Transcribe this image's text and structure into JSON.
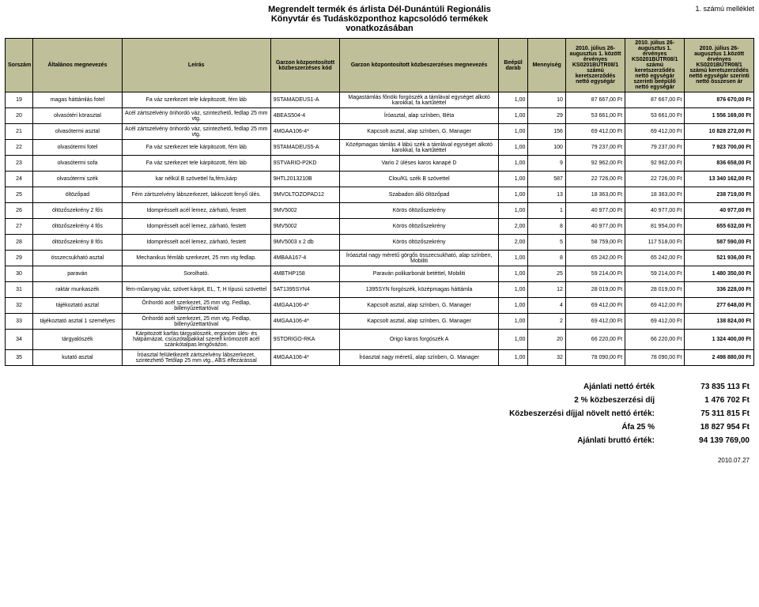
{
  "header": {
    "title_line1": "Megrendelt termék és árlista  Dél-Dunántúli Regionális",
    "title_line2": "Könyvtár és Tudásközponthoz kapcsolódó termékek",
    "title_line3": "vonatkozásában",
    "attachment": "1. számú melléklet"
  },
  "columns": [
    "Sorszám",
    "Általános megnevezés",
    "Leírás",
    "Garzon központosított közbeszerzéses kód",
    "Garzon központosított közbeszerzéses megnevezés",
    "Beépül darab",
    "Mennyiség",
    "2010. július 26-augusztus 1. között érvényes KS0201BUTR08/1 számú keretszerződés nettó egységár",
    "2010. július 26-augusztus 1. érvényes KS0201BUTR08/1 számú keretszerződés nettó egységár szerinti beépülő nettó egységár",
    "2010. július 26-augusztus 1.között érvényes KS0201BUTR08/1 számú keretszerződés nettó egységár szerinti nettó összesen ár"
  ],
  "rows": [
    {
      "sor": "19",
      "megn": "magas háttámlás fotel",
      "leiras": "Fa váz szerkezet tele kárpitozott, fém láb",
      "kod": "9STAMADEUS1-A",
      "kozb": "Magastámlás főnöki forgószék a támlával egységet alkotó karokkal, fa kartűtéttel",
      "db": "1,00",
      "menny": "10",
      "e1": "87 667,00 Ft",
      "e2": "87 667,00 Ft",
      "ossz": "876 670,00 Ft"
    },
    {
      "sor": "20",
      "megn": "olvasótéri körasztal",
      "leiras": "Acél zártszelvény önhordó váz, szintezhető, fedlap 25 mm vtg.",
      "kod": "4BEAS504-4",
      "kozb": "Íróasztal, alap színben, Béta",
      "db": "1,00",
      "menny": "29",
      "e1": "53 661,00 Ft",
      "e2": "53 661,00 Ft",
      "ossz": "1 556 169,00 Ft"
    },
    {
      "sor": "21",
      "megn": "olvasótermi asztal",
      "leiras": "Acél zártszelvény önhordó váz, szintezhető, fedlap 25 mm vtg.",
      "kod": "4MGAA106-4*",
      "kozb": "Kapcsolt asztal, alap színben, G. Manager",
      "db": "1,00",
      "menny": "156",
      "e1": "69 412,00 Ft",
      "e2": "69 412,00 Ft",
      "ossz": "10 828 272,00 Ft"
    },
    {
      "sor": "22",
      "megn": "olvasótermi fotel",
      "leiras": "Fa váz szerkezet tele kárpitozott, fém láb",
      "kod": "9STAMADEUS5-A",
      "kozb": "Középmagas támlás 4 lábú szék a támlával egységet alkotó karokkal, fa kartűtéttel",
      "db": "1,00",
      "menny": "100",
      "e1": "79 237,00 Ft",
      "e2": "79 237,00 Ft",
      "ossz": "7 923 700,00 Ft"
    },
    {
      "sor": "23",
      "megn": "olvasótermi sofa",
      "leiras": "Fa váz szerkezet tele kárpitozott, fém láb",
      "kod": "9STVARIO-P2KD",
      "kozb": "Vario 2 üléses karos kanapé D",
      "db": "1,00",
      "menny": "9",
      "e1": "92 962,00 Ft",
      "e2": "92 962,00 Ft",
      "ossz": "836 658,00 Ft"
    },
    {
      "sor": "24",
      "megn": "olvasótermi szék",
      "leiras": "kar nélkül  B szövettel  fa,fém,kárp",
      "kod": "9HTL2013210B",
      "kozb": "Clou/KL szék B szövettel",
      "db": "1,00",
      "menny": "587",
      "e1": "22 726,00 Ft",
      "e2": "22 726,00 Ft",
      "ossz": "13 340 162,00 Ft"
    },
    {
      "sor": "25",
      "megn": "öltözőpad",
      "leiras": "Fém zártszelvény lábszerkezet, lakkozott fenyő ülés.",
      "kod": "9MVOLTOZOPAD12",
      "kozb": "Szabadon álló öltözőpad",
      "db": "1,00",
      "menny": "13",
      "e1": "18 363,00 Ft",
      "e2": "18 363,00 Ft",
      "ossz": "238 719,00 Ft"
    },
    {
      "sor": "26",
      "megn": "öltözőszekrény 2 fős",
      "leiras": "Idomprésselt acél lemez, zárható, festett",
      "kod": "9MV5002",
      "kozb": "Körös öltözőszekrény",
      "db": "1,00",
      "menny": "1",
      "e1": "40 977,00 Ft",
      "e2": "40 977,00 Ft",
      "ossz": "40 977,00 Ft"
    },
    {
      "sor": "27",
      "megn": "öltözőszekrény 4 fős",
      "leiras": "Idomprésselt acél lemez, zárható, festett",
      "kod": "9MV5002",
      "kozb": "Körös öltözőszekrény",
      "db": "2,00",
      "menny": "8",
      "e1": "40 977,00 Ft",
      "e2": "81 954,00 Ft",
      "ossz": "655 632,00 Ft"
    },
    {
      "sor": "28",
      "megn": "öltözőszekrény 8 fős",
      "leiras": "Idomprésselt acél lemez, zárható, festett",
      "kod": "9MV5003 x 2 db",
      "kozb": "Körös öltözőszekrény",
      "db": "2,00",
      "menny": "5",
      "e1": "58 759,00 Ft",
      "e2": "117 518,00 Ft",
      "ossz": "587 590,00 Ft"
    },
    {
      "sor": "29",
      "megn": "összecsukható asztal",
      "leiras": "Mechanikus fémláb szerkezet, 25 mm vtg fedlap.",
      "kod": "4MBAA167-4",
      "kozb": "Íróasztal nagy méretű görgős összecsukható, alap színben, Mobiliti",
      "db": "1,00",
      "menny": "8",
      "e1": "65 242,00 Ft",
      "e2": "65 242,00 Ft",
      "ossz": "521 936,00 Ft"
    },
    {
      "sor": "30",
      "megn": "paraván",
      "leiras": "Sorolható.",
      "kod": "4MBTHP158",
      "kozb": "Paraván polikarbonát betéttel, Mobiliti",
      "db": "1,00",
      "menny": "25",
      "e1": "59 214,00 Ft",
      "e2": "59 214,00 Ft",
      "ossz": "1 480 350,00 Ft"
    },
    {
      "sor": "31",
      "megn": "raktár munkaszék",
      "leiras": "fém-műanyag váz, szövet kárpit, EL, T, H típusú szövettel",
      "kod": "9AT1395SYN4",
      "kozb": "1395SYN forgószék, középmagas háttámla",
      "db": "1,00",
      "menny": "12",
      "e1": "28 019,00 Ft",
      "e2": "28 019,00 Ft",
      "ossz": "336 228,00 Ft"
    },
    {
      "sor": "32",
      "megn": "tájékoztató asztal",
      "leiras": "Önhordó acél szerkezet, 25 mm vtg. Fedlap, billenyűzettartóval",
      "kod": "4MGAA106-4*",
      "kozb": "Kapcsolt asztal, alap színben, G. Manager",
      "db": "1,00",
      "menny": "4",
      "e1": "69 412,00 Ft",
      "e2": "69 412,00 Ft",
      "ossz": "277 648,00 Ft"
    },
    {
      "sor": "33",
      "megn": "tájékoztató asztal 1 személyes",
      "leiras": "Önhordó acél szerkezet, 25 mm vtg. Fedlap, billenyűzettartóval",
      "kod": "4MGAA106-4*",
      "kozb": "Kapcsolt asztal, alap színben, G. Manager",
      "db": "1,00",
      "menny": "2",
      "e1": "69 412,00 Ft",
      "e2": "69 412,00 Ft",
      "ossz": "138 824,00 Ft"
    },
    {
      "sor": "34",
      "megn": "tárgyalószék",
      "leiras": "Kárpitozott karfás tárgyalószék, ergonóm ülés- és hátpárnázat, csúszótalpakkal szerelt krómozott acél szánkótalpas lengőváźon.",
      "kod": "9STORIGO-RKA",
      "kozb": "Origo karos forgószék A",
      "db": "1,00",
      "menny": "20",
      "e1": "66 220,00 Ft",
      "e2": "66 220,00 Ft",
      "ossz": "1 324 400,00 Ft"
    },
    {
      "sor": "35",
      "megn": "kutató asztal",
      "leiras": "Íróasztal felületkezelt zártszelvény lábszerkezet, szintezhető Tetőlap 25 mm vtg., ABS élfezárással",
      "kod": "4MGAA106-4*",
      "kozb": "Íróasztal nagy méretű, alap színben, G. Manager",
      "db": "1,00",
      "menny": "32",
      "e1": "78 090,00 Ft",
      "e2": "78 090,00 Ft",
      "ossz": "2 498 880,00 Ft"
    }
  ],
  "summary": [
    {
      "label": "Ajánlati nettó érték",
      "value": "73 835 113 Ft"
    },
    {
      "label": "2 % közbeszerzési díj",
      "value": "1 476 702 Ft"
    },
    {
      "label": "Közbeszerzési díjjal növelt nettó érték:",
      "value": "75 311 815 Ft"
    },
    {
      "label": "Áfa 25 %",
      "value": "18 827 954 Ft"
    },
    {
      "label": "Ajánlati bruttó érték:",
      "value": "94 139 769,00"
    }
  ],
  "footer_date": "2010.07.27"
}
